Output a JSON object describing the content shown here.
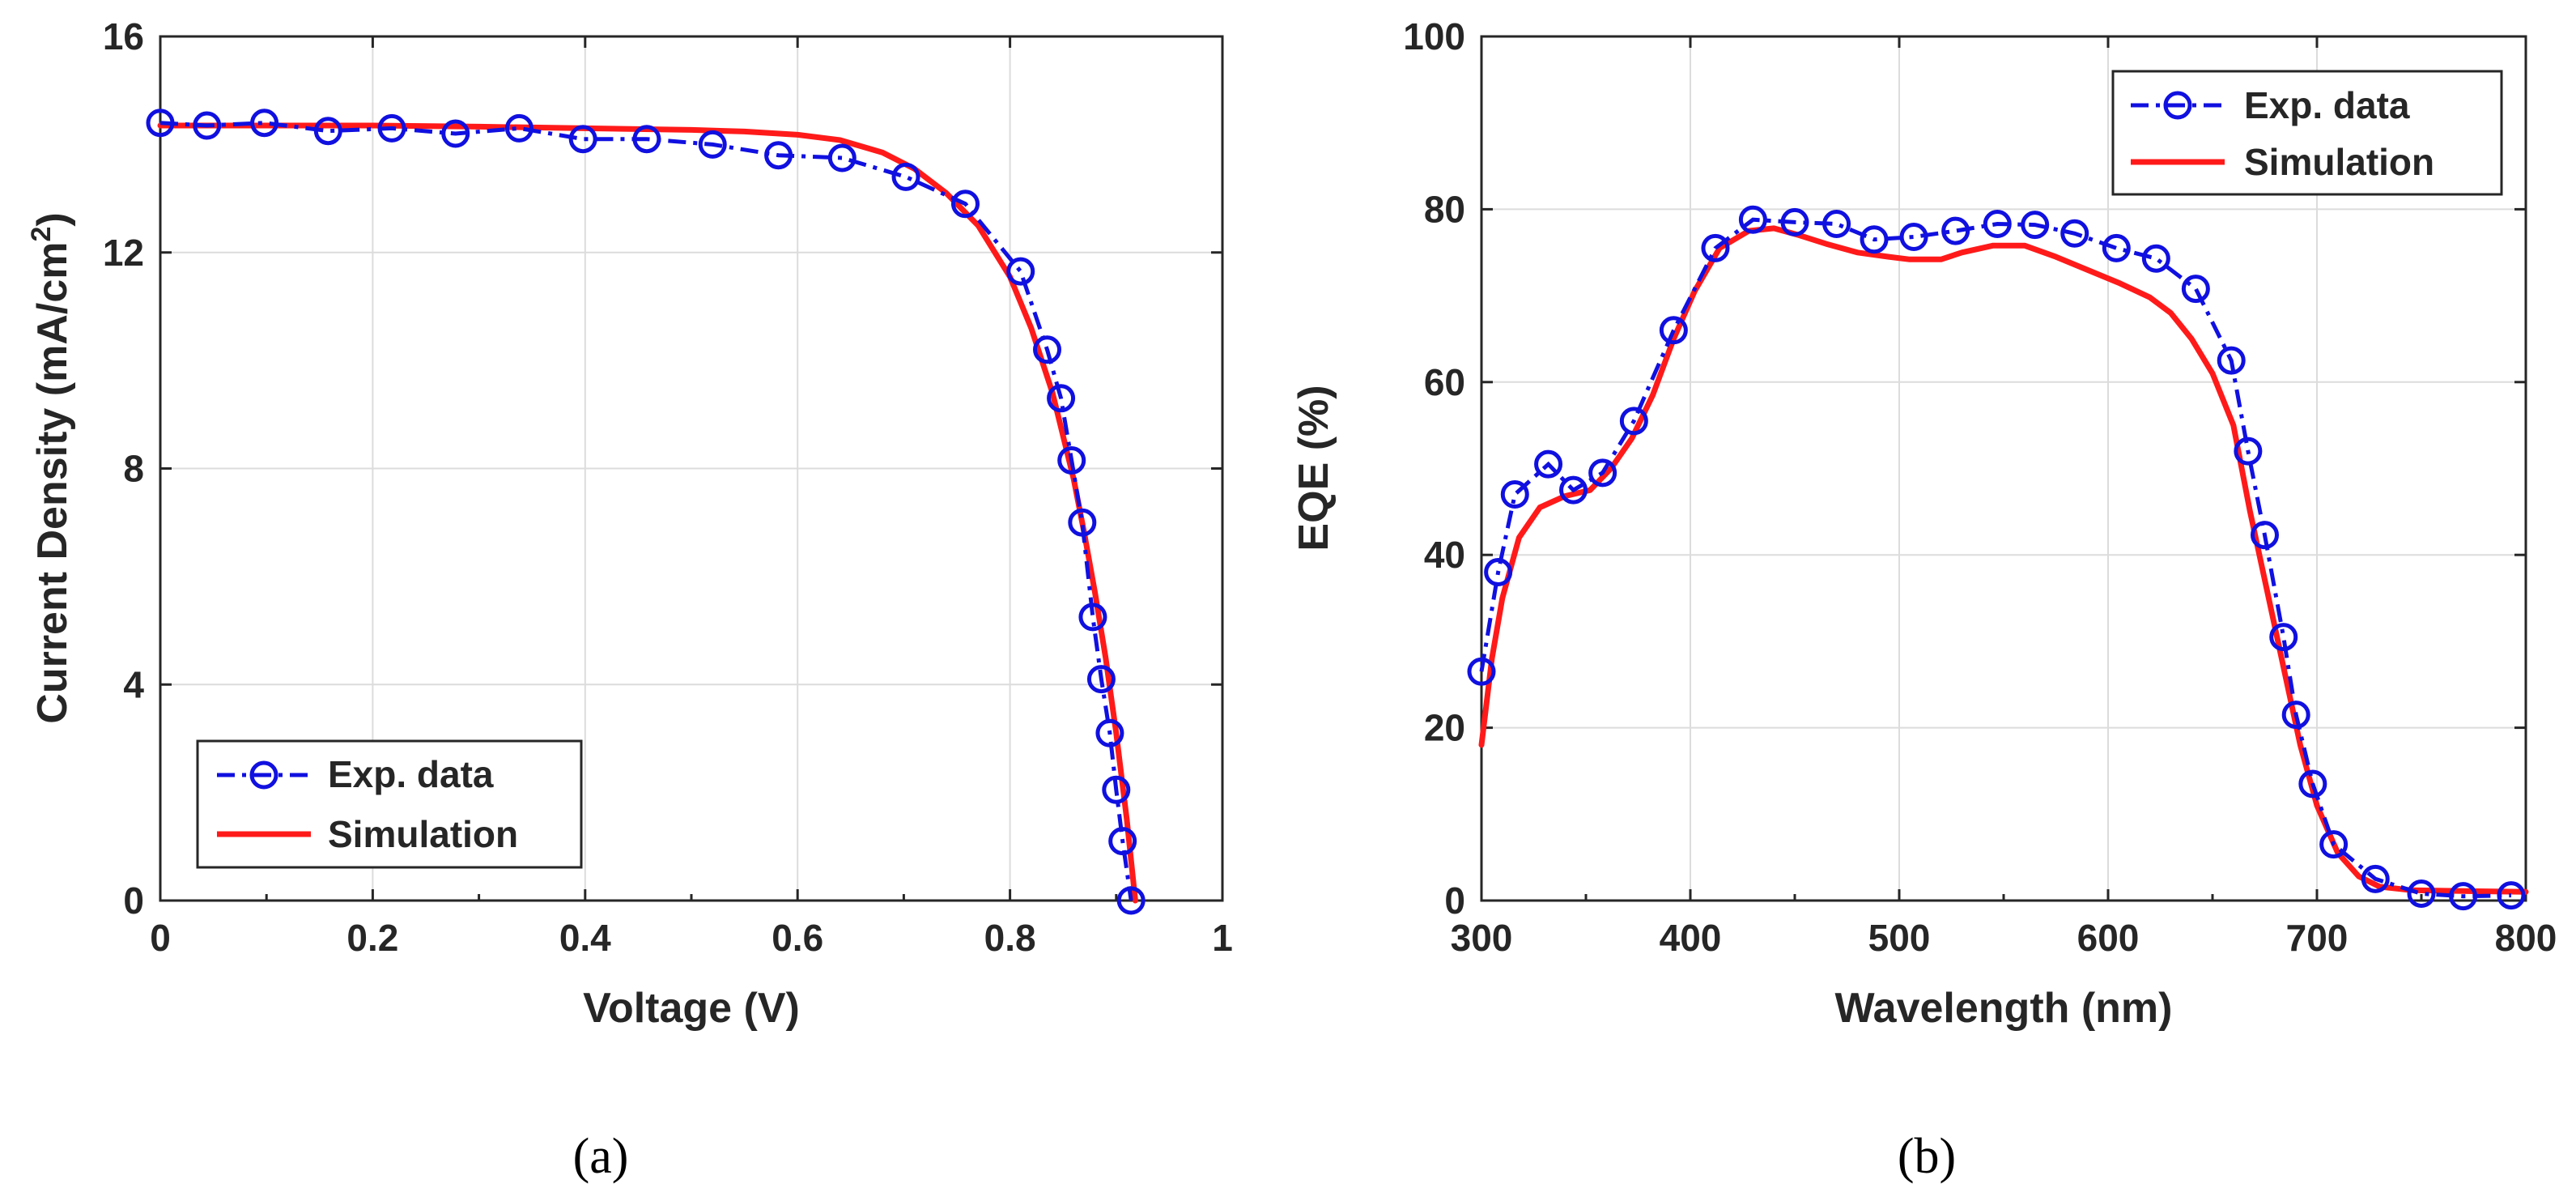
{
  "chart_data": [
    {
      "type": "line",
      "panel_label": "(a)",
      "title": "",
      "xlabel": "Voltage (V)",
      "ylabel": "Current Density (mA/cm",
      "ylabel_sup": "2",
      "ylabel_end": ")",
      "xlim": [
        0,
        1
      ],
      "ylim": [
        0,
        16
      ],
      "xticks": [
        0,
        0.2,
        0.4,
        0.6,
        0.8,
        1
      ],
      "xtick_labels": [
        "0",
        "0.2",
        "0.4",
        "0.6",
        "0.8",
        "1"
      ],
      "yticks": [
        0,
        4,
        8,
        12,
        16
      ],
      "ytick_labels": [
        "0",
        "4",
        "8",
        "12",
        "16"
      ],
      "grid": true,
      "legend_position": "bottom-left",
      "series": [
        {
          "name": "Exp. data",
          "color": "#1010e0",
          "style": "dash-dot-circle",
          "x": [
            0,
            0.044,
            0.098,
            0.158,
            0.218,
            0.278,
            0.338,
            0.398,
            0.458,
            0.52,
            0.582,
            0.642,
            0.702,
            0.758,
            0.81,
            0.835,
            0.848,
            0.858,
            0.868,
            0.878,
            0.886,
            0.894,
            0.9,
            0.906,
            0.914
          ],
          "y": [
            14.4,
            14.35,
            14.4,
            14.25,
            14.3,
            14.2,
            14.3,
            14.1,
            14.1,
            14.0,
            13.8,
            13.75,
            13.4,
            12.9,
            11.65,
            10.2,
            9.3,
            8.15,
            7.0,
            5.25,
            4.1,
            3.1,
            2.05,
            1.1,
            0.0
          ]
        },
        {
          "name": "Simulation",
          "color": "#ff1a1a",
          "style": "solid",
          "x": [
            0,
            0.1,
            0.2,
            0.3,
            0.4,
            0.5,
            0.55,
            0.6,
            0.64,
            0.68,
            0.71,
            0.74,
            0.77,
            0.8,
            0.82,
            0.84,
            0.86,
            0.87,
            0.88,
            0.89,
            0.9,
            0.91,
            0.918
          ],
          "y": [
            14.35,
            14.35,
            14.35,
            14.33,
            14.3,
            14.27,
            14.24,
            14.18,
            14.08,
            13.85,
            13.55,
            13.1,
            12.5,
            11.55,
            10.6,
            9.4,
            7.8,
            6.8,
            5.7,
            4.5,
            3.1,
            1.5,
            0.0
          ]
        }
      ]
    },
    {
      "type": "line",
      "panel_label": "(b)",
      "title": "",
      "xlabel": "Wavelength (nm)",
      "ylabel": "EQE (%)",
      "xlim": [
        300,
        800
      ],
      "ylim": [
        0,
        100
      ],
      "xticks": [
        300,
        400,
        500,
        600,
        700,
        800
      ],
      "xtick_labels": [
        "300",
        "400",
        "500",
        "600",
        "700",
        "800"
      ],
      "yticks": [
        0,
        20,
        40,
        60,
        80,
        100
      ],
      "ytick_labels": [
        "0",
        "20",
        "40",
        "60",
        "80",
        "100"
      ],
      "grid": true,
      "legend_position": "top-right",
      "series": [
        {
          "name": "Exp. data",
          "color": "#1010e0",
          "style": "dash-dot-circle",
          "x": [
            300,
            308,
            316,
            332,
            344,
            358,
            373,
            392,
            412,
            430,
            450,
            470,
            488,
            507,
            527,
            547,
            565,
            584,
            604,
            623,
            642,
            659,
            667,
            675,
            684,
            690,
            698,
            708,
            728,
            750,
            770,
            793
          ],
          "y": [
            26.5,
            38,
            47,
            50.5,
            47.5,
            49.5,
            55.5,
            66,
            75.5,
            78.8,
            78.5,
            78.3,
            76.5,
            76.8,
            77.5,
            78.3,
            78.2,
            77.2,
            75.5,
            74.3,
            70.8,
            62.5,
            52,
            42.3,
            30.5,
            21.5,
            13.5,
            6.5,
            2.5,
            0.8,
            0.5,
            0.6
          ]
        },
        {
          "name": "Simulation",
          "color": "#ff1a1a",
          "style": "solid",
          "x": [
            300,
            305,
            310,
            318,
            328,
            340,
            352,
            362,
            372,
            382,
            392,
            402,
            414,
            428,
            440,
            452,
            465,
            480,
            495,
            505,
            520,
            530,
            545,
            560,
            575,
            590,
            605,
            620,
            630,
            640,
            650,
            660,
            668,
            676,
            684,
            692,
            700,
            710,
            720,
            730,
            745,
            770,
            800
          ],
          "y": [
            18,
            28,
            35,
            42,
            45.5,
            46.8,
            47.5,
            50,
            53.5,
            58.5,
            65,
            70.5,
            75.5,
            77.5,
            77.8,
            77,
            76,
            75,
            74.5,
            74.2,
            74.2,
            75,
            75.8,
            75.8,
            74.5,
            73,
            71.5,
            69.8,
            68,
            65,
            61,
            55,
            45,
            36,
            27,
            18,
            11,
            5.5,
            2.8,
            1.6,
            1.2,
            1.1,
            1.0
          ]
        }
      ]
    }
  ]
}
